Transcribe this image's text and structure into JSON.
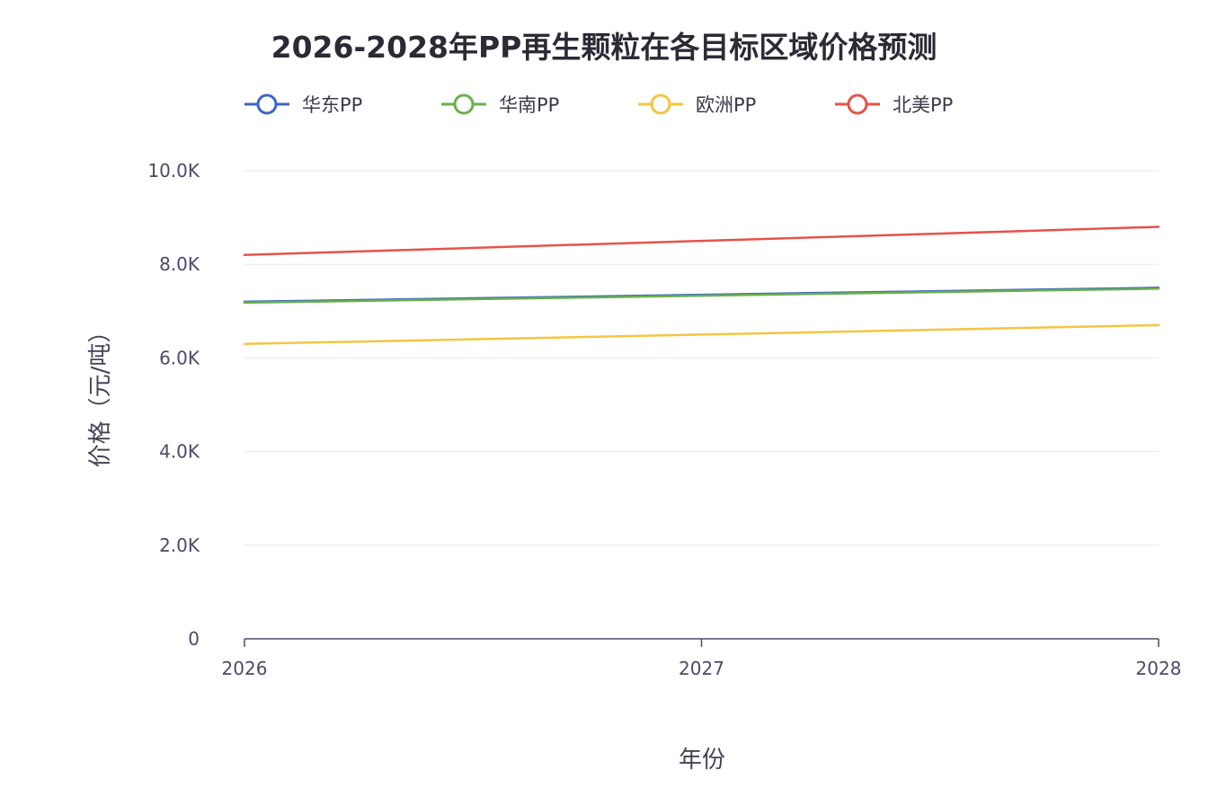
{
  "chart_data": {
    "type": "line",
    "title": "2026-2028年PP再生颗粒在各目标区域价格预测",
    "xlabel": "年份",
    "ylabel": "价格（元/吨）",
    "x": [
      "2026",
      "2027",
      "2028"
    ],
    "ylim": [
      0,
      10000
    ],
    "yticks": [
      0,
      2000,
      4000,
      6000,
      8000,
      10000
    ],
    "ytick_labels": [
      "0",
      "2.0K",
      "4.0K",
      "6.0K",
      "8.0K",
      "10.0K"
    ],
    "grid": true,
    "legend_position": "top",
    "series": [
      {
        "name": "华东PP",
        "color": "#3b67c4",
        "values": [
          7200,
          7350,
          7500
        ]
      },
      {
        "name": "华南PP",
        "color": "#6ab04c",
        "values": [
          7180,
          7330,
          7480
        ]
      },
      {
        "name": "欧洲PP",
        "color": "#f5c542",
        "values": [
          6300,
          6500,
          6700
        ]
      },
      {
        "name": "北美PP",
        "color": "#e5534b",
        "values": [
          8200,
          8500,
          8800
        ]
      }
    ]
  }
}
